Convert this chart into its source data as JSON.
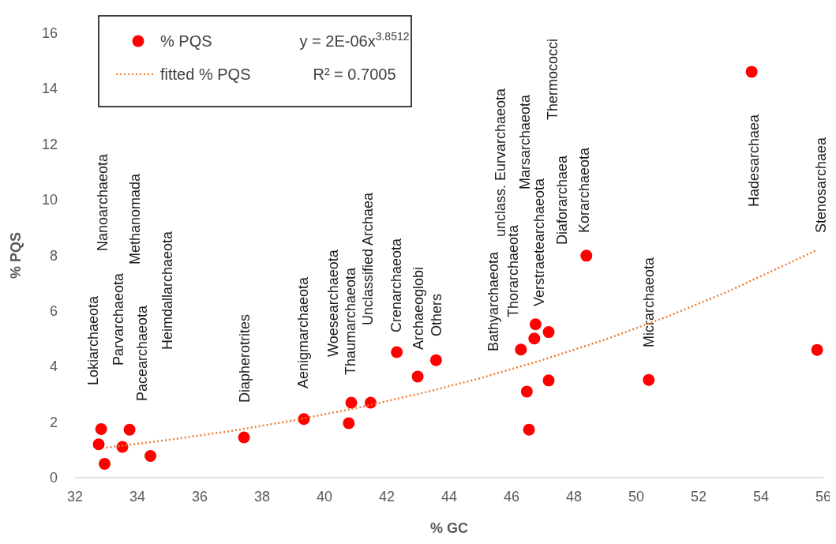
{
  "chart_data": {
    "type": "scatter",
    "xlabel": "% GC",
    "ylabel": "% PQS",
    "xlim": [
      32,
      56
    ],
    "xticks": [
      32,
      34,
      36,
      38,
      40,
      42,
      44,
      46,
      48,
      50,
      52,
      54,
      56
    ],
    "ylim": [
      0,
      16
    ],
    "yticks": [
      0,
      2,
      4,
      6,
      8,
      10,
      12,
      14,
      16
    ],
    "legend": "top left",
    "series": [
      {
        "name": "% PQS",
        "color": "#ff0000",
        "marker": "circle",
        "x": [
          32.84,
          32.76,
          32.95,
          33.75,
          33.52,
          34.42,
          37.42,
          39.34,
          40.78,
          40.86,
          41.48,
          42.32,
          42.99,
          43.58,
          46.3,
          46.77,
          46.73,
          47.19,
          47.19,
          46.49,
          46.56,
          48.4,
          50.4,
          53.7,
          55.8
        ],
        "values": [
          1.75,
          1.2,
          0.5,
          1.73,
          1.11,
          0.78,
          1.45,
          2.11,
          1.96,
          2.7,
          2.7,
          4.52,
          3.64,
          4.23,
          4.61,
          5.52,
          5.01,
          5.24,
          3.5,
          3.1,
          1.73,
          7.99,
          3.52,
          14.61,
          4.6
        ]
      },
      {
        "name": "fitted % PQS",
        "type": "line",
        "color": "#ed7d31",
        "line_style": "dotted",
        "marker": "none",
        "x": [
          33,
          35,
          37,
          39,
          41,
          43,
          45,
          47,
          49,
          51,
          53,
          55.8
        ],
        "values": [
          1.08,
          1.36,
          1.68,
          2.06,
          2.5,
          3.01,
          3.58,
          4.24,
          4.97,
          5.8,
          6.73,
          8.2
        ]
      }
    ],
    "annotations": [
      "y = 2E-06x$^{3.8512}$",
      "R² = 0.7005",
      "Lokiarchaeota",
      "Nanoarchaeota",
      "Parvarchaeota",
      "Methanomada",
      "Pacearchaeota",
      "Heimdallarchaeota",
      "Diapherotrites",
      "Aenigmarchaeota",
      "Woesearchaeota",
      "Thaumarchaeota",
      "Unclassified Archaea",
      "Crenarchaeota",
      "Archaeoglobi",
      "Others",
      "Bathyarchaeota",
      "unclass. Eurvarchaeota",
      "Thorarchaeota",
      "Marsarchaeota",
      "Verstraetearchaeota",
      "Thermococci",
      "Diaforarchaea",
      "Korarchaeota",
      "Micrarchaeota",
      "Hadesarchaea",
      "Stenosarchaea"
    ]
  }
}
